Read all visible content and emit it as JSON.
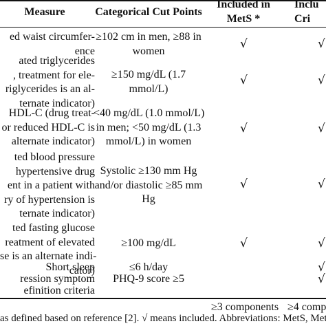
{
  "header": {
    "measure": "Measure",
    "cut_points": "Categorical Cut Points",
    "mets": "Included in\nMetS *",
    "partial_mets": "Inclu\nCri"
  },
  "rows": [
    {
      "measure": "ed waist circumfer-\nence",
      "cut": "≥102 cm in men, ≥88 in\nwomen",
      "mets": "√",
      "partial": "√"
    },
    {
      "measure": "ated triglycerides\n, treatment for ele-\nriglycerides is an al-\nternate indicator)",
      "cut": "≥150 mg/dL (1.7\nmmol/L)",
      "mets": "√",
      "partial": "√"
    },
    {
      "measure": "HDL-C (drug treat-\nor reduced HDL-C is\nalternate indicator)",
      "cut": "<40 mg/dL (1.0 mmol/L)\nin men; <50 mg/dL (1.3\nmmol/L) in women",
      "mets": "√",
      "partial": "√"
    },
    {
      "measure": "ted blood pressure\nhypertensive drug\nent in a patient with\nry of hypertension is\nternate indicator)",
      "cut": "Systolic ≥130 mm Hg\nand/or diastolic ≥85 mm\nHg",
      "mets": "√",
      "partial": "√"
    },
    {
      "measure": "ted fasting glucose\nreatment of elevated\nse is an alternate indi-\ncator)",
      "cut": "≥100 mg/dL",
      "mets": "√",
      "partial": "√"
    },
    {
      "measure": "Short sleep",
      "cut": "≤6 h/day",
      "mets": "",
      "partial": "√"
    },
    {
      "measure": "ression symptom",
      "cut": "PHQ-9 score ≥5",
      "mets": "",
      "partial": "√"
    },
    {
      "measure": "efinition criteria",
      "cut": "",
      "mets": "≥3 components",
      "partial": "≥4 comp"
    }
  ],
  "footnote": "as defined based on reference [2]. √ means included. Abbreviations: MetS, Meta"
}
